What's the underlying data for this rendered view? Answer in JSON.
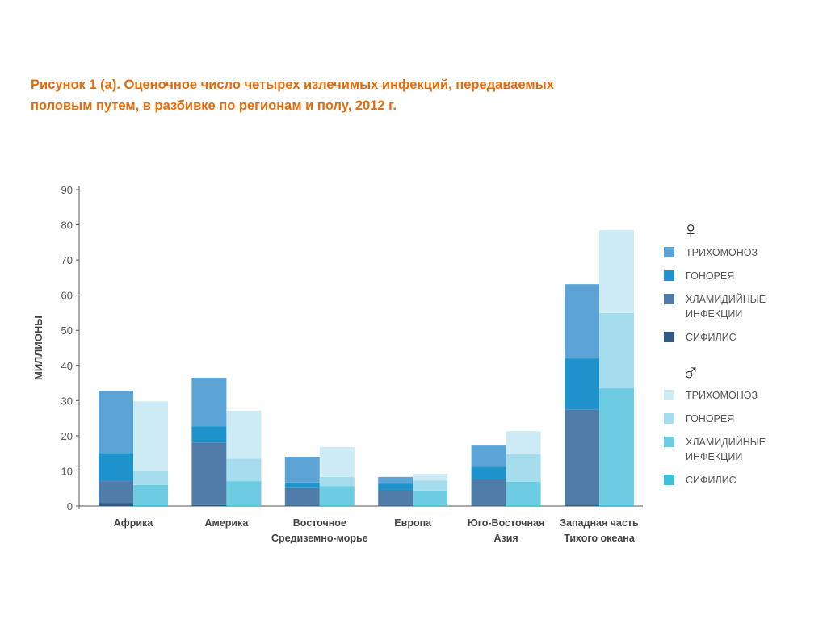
{
  "title": "Рисунок 1 (а). Оценочное число четырех излечимых инфекций, передаваемых половым путем, в разбивке по регионам и полу, 2012 г.",
  "chart_data": {
    "type": "bar",
    "stacked": true,
    "ylabel": "МИЛЛИОНЫ",
    "ylim": [
      0,
      90
    ],
    "yticks": [
      0,
      10,
      20,
      30,
      40,
      50,
      60,
      70,
      80,
      90
    ],
    "categories": [
      "Африка",
      "Америка",
      "Восточное Средиземно-морье",
      "Европа",
      "Юго-Восточная Азия",
      "Западная часть Тихого океана"
    ],
    "category_lines": [
      [
        "Африка"
      ],
      [
        "Америка"
      ],
      [
        "Восточное",
        "Средиземно-морье"
      ],
      [
        "Европа"
      ],
      [
        "Юго-Восточная",
        "Азия"
      ],
      [
        "Западная часть",
        "Тихого океана"
      ]
    ],
    "groups": [
      {
        "sex": "female",
        "symbol": "♀",
        "series": [
          {
            "name": "СИФИЛИС",
            "color": "#2E5A84",
            "values": [
              0.8,
              0.3,
              0.1,
              0.1,
              0.2,
              0.4
            ]
          },
          {
            "name": "ХЛАМИДИЙНЫЕ ИНФЕКЦИИ",
            "color": "#4F7CA8",
            "values": [
              6.3,
              17.8,
              5.0,
              4.5,
              7.4,
              27.1
            ]
          },
          {
            "name": "ГОНОРЕЯ",
            "color": "#1E93CC",
            "values": [
              8.0,
              4.6,
              1.6,
              1.8,
              3.6,
              14.5
            ]
          },
          {
            "name": "ТРИХОМОНОЗ",
            "color": "#5CA3D6",
            "values": [
              17.7,
              13.8,
              7.3,
              1.9,
              6.0,
              21.1
            ]
          }
        ]
      },
      {
        "sex": "male",
        "symbol": "♂",
        "series": [
          {
            "name": "СИФИЛИС",
            "color": "#3FC0D6",
            "values": [
              0.3,
              0.2,
              0.1,
              0.1,
              0.1,
              0.3
            ]
          },
          {
            "name": "ХЛАМИДИЙНЫЕ ИНФЕКЦИИ",
            "color": "#6DCBE2",
            "values": [
              5.7,
              6.9,
              5.6,
              4.3,
              6.8,
              33.2
            ]
          },
          {
            "name": "ГОНОРЕЯ",
            "color": "#A6DDEC",
            "values": [
              3.9,
              6.4,
              2.6,
              2.9,
              7.8,
              21.4
            ]
          },
          {
            "name": "ТРИХОМОНОЗ",
            "color": "#CDEBF4",
            "values": [
              19.9,
              13.6,
              8.5,
              1.9,
              6.6,
              23.6
            ]
          }
        ]
      }
    ],
    "legend_lines": {
      "ХЛАМИДИЙНЫЕ ИНФЕКЦИИ": [
        "ХЛАМИДИЙНЫЕ",
        "ИНФЕКЦИИ"
      ]
    },
    "legend_position": "right",
    "grid": false
  }
}
